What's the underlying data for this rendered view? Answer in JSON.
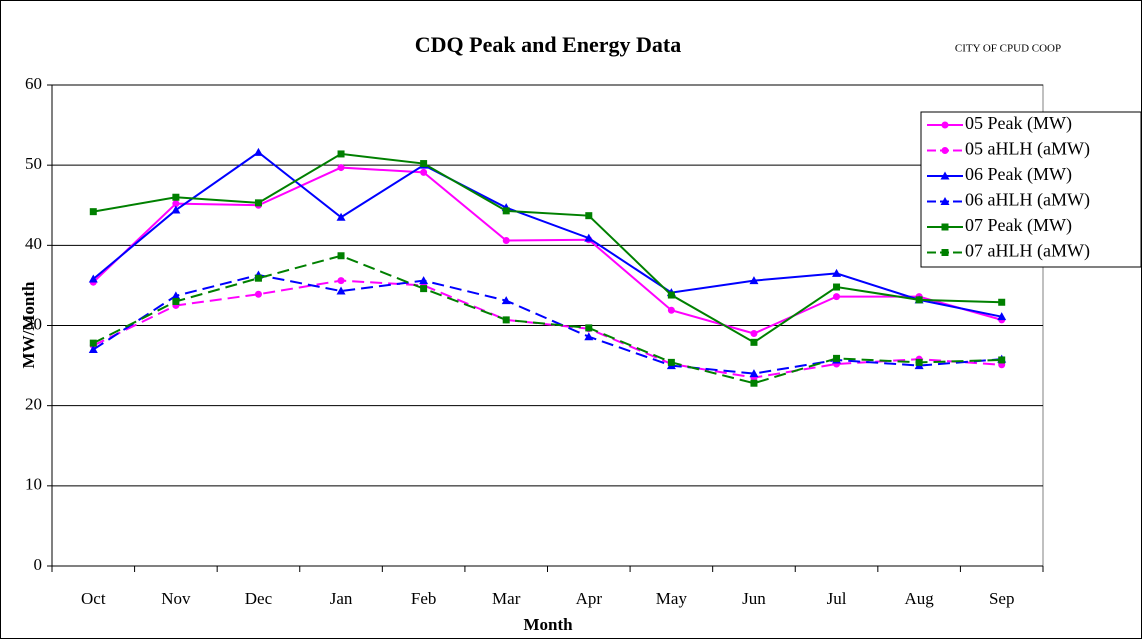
{
  "chart_data": {
    "type": "line",
    "title": "CDQ Peak and Energy Data",
    "annotation": "CITY OF CPUD COOP",
    "xlabel": "Month",
    "ylabel": "MW/Month",
    "categories": [
      "Oct",
      "Nov",
      "Dec",
      "Jan",
      "Feb",
      "Mar",
      "Apr",
      "May",
      "Jun",
      "Jul",
      "Aug",
      "Sep"
    ],
    "ylim": [
      0,
      60
    ],
    "yticks": [
      0,
      10,
      20,
      30,
      40,
      50,
      60
    ],
    "grid": true,
    "legend": "right",
    "series": [
      {
        "name": "05 Peak (MW)",
        "color": "#ff00ff",
        "marker": "circle",
        "dash": false,
        "values": [
          35.4,
          45.2,
          45.0,
          49.7,
          49.1,
          40.6,
          40.7,
          31.9,
          29.0,
          33.6,
          33.6,
          30.7
        ]
      },
      {
        "name": "05 aHLH (aMW)",
        "color": "#ff00ff",
        "marker": "circle",
        "dash": true,
        "values": [
          27.5,
          32.5,
          33.9,
          35.6,
          35.0,
          30.7,
          29.6,
          25.2,
          23.5,
          25.2,
          25.8,
          25.1
        ]
      },
      {
        "name": "06 Peak (MW)",
        "color": "#0000ff",
        "marker": "triangle",
        "dash": false,
        "values": [
          35.8,
          44.4,
          51.6,
          43.5,
          50.0,
          44.7,
          40.9,
          34.1,
          35.6,
          36.5,
          33.2,
          31.1
        ]
      },
      {
        "name": "06 aHLH (aMW)",
        "color": "#0000ff",
        "marker": "triangle",
        "dash": true,
        "values": [
          27.0,
          33.7,
          36.3,
          34.3,
          35.6,
          33.1,
          28.6,
          25.0,
          24.0,
          25.7,
          25.0,
          25.8
        ]
      },
      {
        "name": "07 Peak (MW)",
        "color": "#008000",
        "marker": "square",
        "dash": false,
        "values": [
          44.2,
          46.0,
          45.3,
          51.4,
          50.2,
          44.3,
          43.7,
          33.8,
          27.9,
          34.8,
          33.2,
          32.9
        ]
      },
      {
        "name": "07 aHLH (aMW)",
        "color": "#008000",
        "marker": "square",
        "dash": true,
        "values": [
          27.8,
          33.0,
          35.9,
          38.7,
          34.6,
          30.7,
          29.7,
          25.4,
          22.8,
          25.9,
          25.4,
          25.7
        ]
      }
    ]
  }
}
